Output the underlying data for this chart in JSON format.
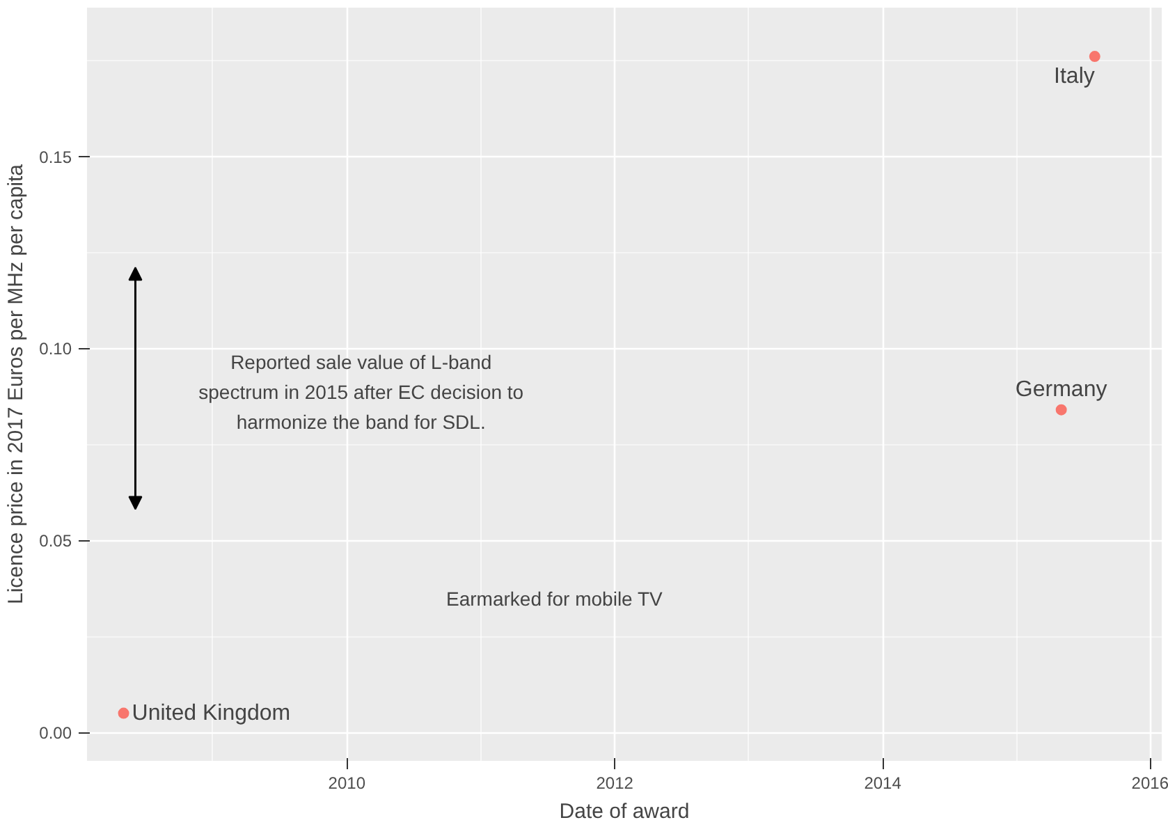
{
  "chart_data": {
    "type": "scatter",
    "xlabel": "Date of award",
    "ylabel": "Licence price in 2017 Euros per MHz per capita",
    "x": [
      "2008-05",
      "2015-05",
      "2015-08"
    ],
    "series": [
      {
        "color": "#f8766d",
        "values": [
          0.005,
          0.084,
          0.176
        ]
      }
    ],
    "xlim": [
      "2008-01-23",
      "2016-02"
    ],
    "xticks": [
      "2010",
      "2012",
      "2014",
      "2016"
    ],
    "ylim": [
      -0.0074,
      0.1887
    ],
    "yticks": [
      {
        "value": 0,
        "label": "0.00"
      },
      0.05,
      {
        "value": 0.1,
        "label": "0.10"
      },
      0.15
    ],
    "grid": true,
    "marker": "circle",
    "annotations": [
      "Reported sale value of L-band\nspectrum in 2015 after EC decision to\nharmonize the band for SDL.",
      {
        "text": "United Kingdom",
        "x": "2008-05",
        "y": 0.005
      },
      {
        "text": "Germany",
        "x": "2015-05",
        "y": 0.084
      },
      {
        "text": "Italy",
        "x": "2015-08",
        "y": 0.176
      },
      "Earmarked for mobile TV"
    ]
  }
}
